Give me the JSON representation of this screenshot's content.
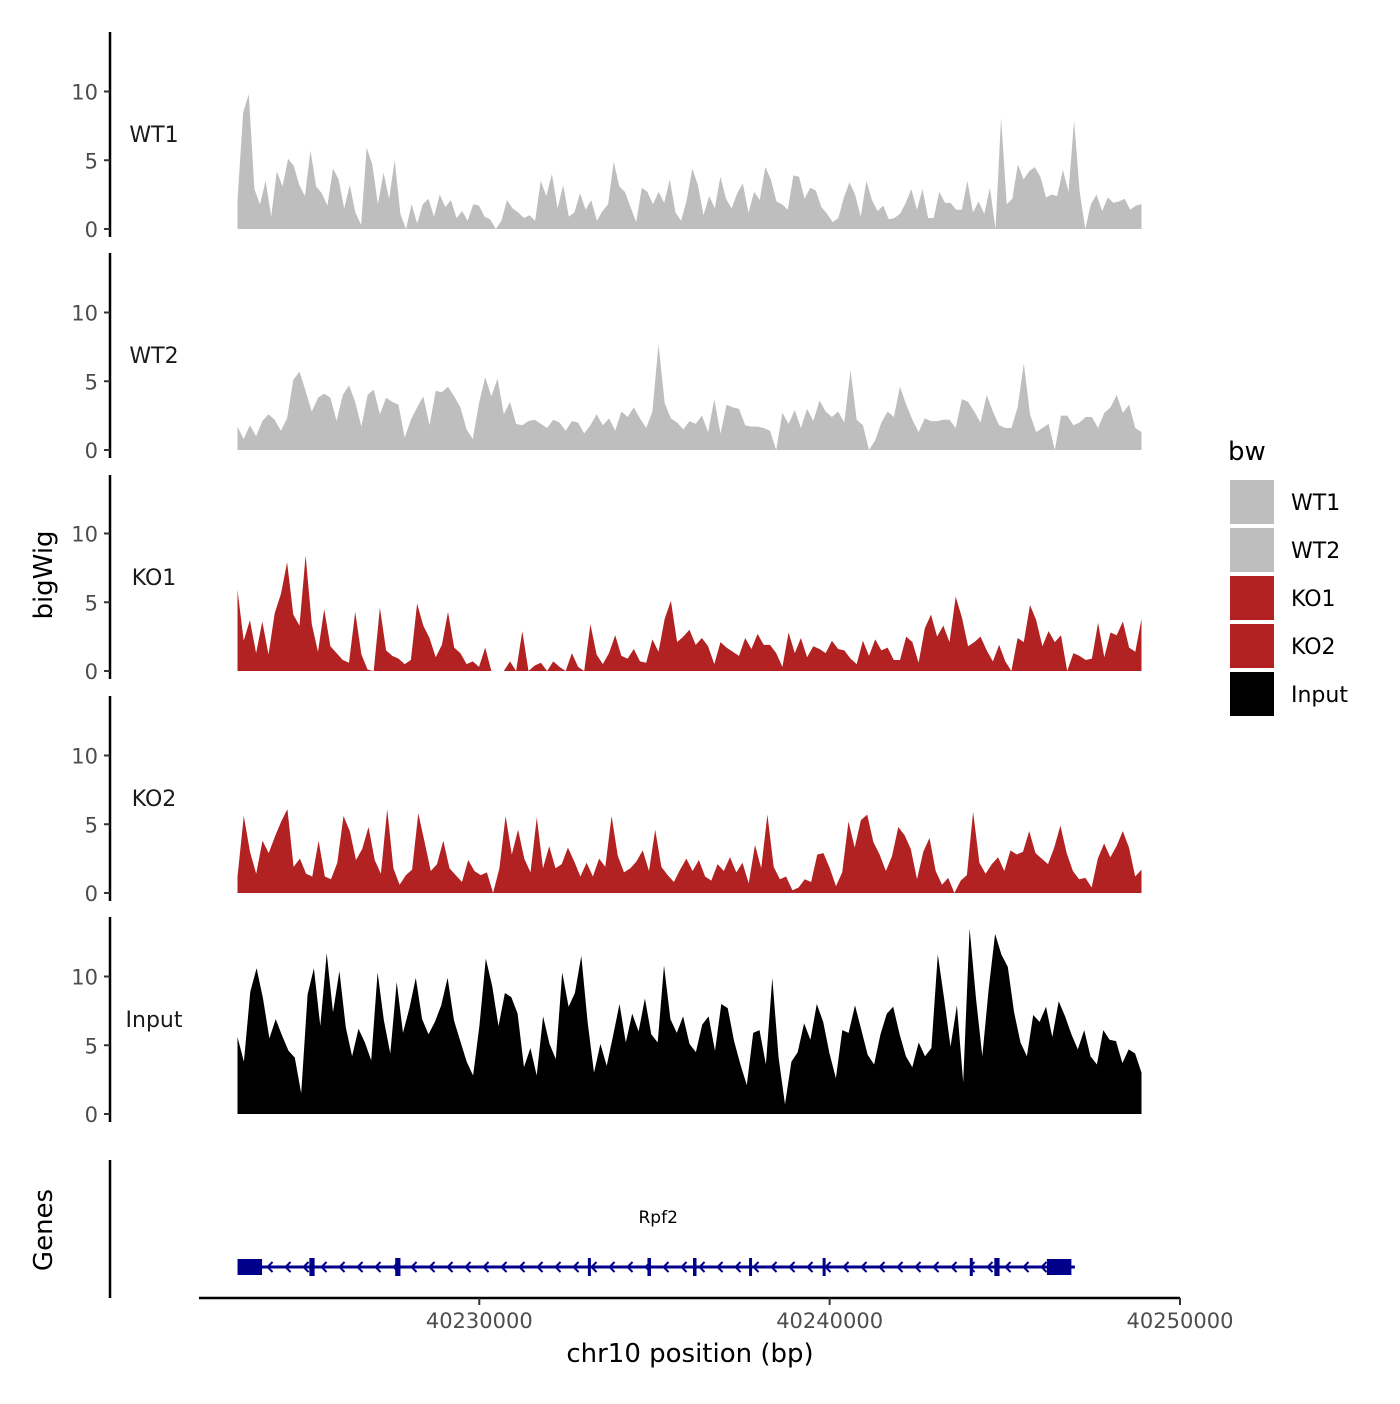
{
  "chart_data": {
    "type": "area",
    "title": "",
    "ylabel": "bigWig",
    "xlabel": "chr10 position (bp)",
    "genes_panel_label": "Genes",
    "xlim": [
      40222000,
      40250000
    ],
    "ylim": [
      0,
      14
    ],
    "data_x_range": [
      40223100,
      40248900
    ],
    "y_ticks": [
      0,
      5,
      10
    ],
    "y_tick_labels": [
      "0",
      "5",
      "10"
    ],
    "x_ticks": [
      40230000,
      40240000,
      40250000
    ],
    "x_tick_labels": [
      "40230000",
      "40240000",
      "40250000"
    ],
    "legend": {
      "title": "bw",
      "position": "right",
      "entries": [
        {
          "label": "WT1",
          "color": "#bebebe"
        },
        {
          "label": "WT2",
          "color": "#bebebe"
        },
        {
          "label": "KO1",
          "color": "#b22222"
        },
        {
          "label": "KO2",
          "color": "#b22222"
        },
        {
          "label": "Input",
          "color": "#000000"
        }
      ]
    },
    "series": [
      {
        "name": "WT1",
        "color": "#bebebe",
        "values": [
          2.1,
          8.5,
          9.8,
          2.9,
          1.8,
          3.5,
          0.9,
          4.2,
          3.1,
          5.1,
          4.6,
          3.2,
          2.4,
          5.7,
          3.1,
          2.6,
          1.7,
          4.4,
          3.6,
          1.5,
          3.2,
          1.2,
          0.3,
          5.9,
          4.7,
          1.8,
          4.1,
          2.2,
          5.0,
          1.1,
          0.0,
          1.8,
          0.4,
          1.8,
          2.2,
          0.9,
          2.5,
          1.6,
          2.1,
          0.8,
          1.3,
          0.6,
          1.8,
          1.7,
          0.9,
          0.7,
          0.0,
          0.6,
          2.1,
          1.5,
          1.2,
          0.8,
          1.0,
          0.6,
          3.5,
          2.4,
          4.0,
          1.5,
          3.2,
          0.9,
          1.2,
          2.6,
          1.4,
          2.1,
          0.6,
          1.3,
          1.8,
          4.9,
          3.1,
          2.7,
          1.6,
          0.5,
          3.0,
          2.7,
          1.8,
          2.7,
          1.9,
          3.6,
          1.2,
          0.6,
          2.1,
          4.4,
          3.2,
          1.0,
          2.4,
          1.5,
          3.8,
          2.2,
          1.5,
          2.6,
          3.3,
          1.2,
          2.7,
          2.1,
          4.5,
          3.6,
          2.0,
          1.8,
          1.4,
          3.9,
          3.8,
          2.2,
          3.0,
          2.8,
          1.6,
          1.1,
          0.5,
          0.8,
          2.3,
          3.4,
          2.5,
          0.9,
          3.5,
          2.1,
          1.3,
          1.7,
          0.7,
          0.8,
          1.1,
          1.9,
          2.9,
          1.4,
          2.9,
          0.8,
          0.8,
          2.7,
          1.9,
          1.9,
          1.4,
          1.4,
          3.5,
          1.2,
          2.0,
          1.1,
          3.0,
          0.0,
          8.1,
          1.8,
          2.2,
          4.7,
          3.6,
          4.2,
          4.5,
          3.8,
          2.3,
          2.5,
          2.4,
          4.3,
          2.7,
          7.9,
          2.7,
          0.0,
          1.8,
          2.5,
          1.3,
          2.3,
          1.9,
          2.0,
          2.2,
          1.4,
          1.7,
          1.8
        ]
      },
      {
        "name": "WT2",
        "color": "#bebebe",
        "values": [
          1.7,
          0.8,
          1.8,
          1.0,
          2.1,
          2.6,
          2.2,
          1.4,
          2.3,
          5.1,
          5.7,
          4.3,
          2.8,
          3.8,
          4.1,
          3.8,
          2.1,
          4.0,
          4.7,
          3.5,
          1.7,
          4.0,
          4.4,
          2.6,
          3.8,
          3.5,
          3.3,
          0.9,
          2.2,
          3.1,
          3.9,
          1.8,
          4.3,
          4.2,
          4.6,
          3.9,
          3.1,
          1.5,
          0.8,
          3.4,
          5.3,
          3.9,
          5.2,
          2.6,
          3.5,
          1.9,
          1.8,
          2.1,
          2.2,
          1.9,
          1.6,
          2.2,
          2.0,
          1.4,
          2.1,
          2.0,
          1.2,
          1.8,
          2.6,
          1.8,
          2.3,
          1.4,
          2.8,
          2.4,
          3.1,
          2.3,
          1.6,
          2.8,
          7.7,
          3.4,
          2.3,
          2.0,
          1.5,
          2.1,
          1.9,
          2.5,
          1.3,
          3.7,
          1.2,
          3.3,
          3.1,
          3.0,
          1.8,
          1.7,
          1.7,
          1.6,
          1.4,
          0.0,
          2.7,
          1.9,
          2.9,
          1.6,
          3.0,
          2.1,
          3.6,
          2.8,
          2.4,
          2.8,
          2.0,
          5.8,
          2.2,
          1.8,
          0.0,
          0.7,
          2.0,
          2.8,
          2.4,
          4.6,
          3.3,
          2.2,
          1.3,
          2.3,
          2.1,
          2.1,
          2.2,
          2.2,
          1.6,
          3.7,
          3.5,
          2.8,
          2.0,
          4.0,
          2.8,
          1.8,
          1.6,
          1.6,
          3.1,
          6.3,
          2.6,
          1.3,
          1.6,
          1.9,
          0.0,
          2.5,
          2.5,
          1.8,
          2.0,
          2.4,
          2.4,
          1.6,
          2.7,
          3.1,
          4.0,
          2.7,
          3.3,
          1.6,
          1.3
        ]
      },
      {
        "name": "KO1",
        "color": "#b22222",
        "values": [
          5.9,
          2.2,
          3.7,
          1.3,
          3.6,
          1.2,
          4.2,
          5.6,
          7.9,
          4.1,
          3.3,
          8.4,
          3.4,
          1.4,
          4.5,
          1.8,
          1.3,
          0.8,
          0.6,
          4.3,
          1.2,
          0.1,
          0.0,
          4.6,
          1.5,
          1.1,
          0.9,
          0.5,
          0.8,
          4.9,
          3.3,
          2.4,
          1.0,
          1.9,
          4.3,
          1.7,
          1.3,
          0.5,
          0.7,
          0.3,
          1.7,
          0.0,
          0.0,
          0.0,
          0.7,
          0.0,
          2.9,
          0.0,
          0.4,
          0.6,
          0.0,
          0.7,
          0.3,
          0.0,
          1.3,
          0.3,
          0.0,
          3.4,
          1.2,
          0.5,
          1.3,
          2.6,
          1.1,
          0.9,
          1.6,
          0.7,
          0.6,
          2.3,
          1.4,
          3.8,
          5.1,
          2.1,
          2.5,
          3.0,
          1.9,
          2.4,
          1.8,
          0.5,
          2.1,
          1.7,
          1.4,
          1.1,
          2.4,
          1.6,
          2.7,
          1.9,
          1.9,
          1.3,
          0.3,
          2.8,
          1.3,
          2.4,
          1.0,
          1.8,
          1.6,
          1.3,
          2.2,
          1.6,
          1.5,
          0.9,
          0.5,
          2.2,
          1.1,
          2.3,
          1.5,
          1.7,
          0.8,
          0.8,
          2.5,
          2.1,
          0.6,
          3.1,
          4.1,
          2.5,
          3.3,
          2.1,
          5.4,
          3.9,
          1.8,
          2.1,
          2.5,
          1.5,
          0.7,
          1.9,
          0.7,
          0.0,
          2.4,
          2.1,
          4.8,
          3.7,
          1.8,
          2.9,
          2.1,
          2.6,
          0.0,
          1.3,
          1.1,
          0.8,
          0.9,
          3.5,
          1.0,
          2.8,
          2.6,
          3.6,
          1.7,
          1.4,
          3.8
        ]
      },
      {
        "name": "KO2",
        "color": "#b22222",
        "values": [
          1.2,
          5.6,
          3.0,
          1.4,
          3.8,
          2.9,
          4.1,
          5.2,
          6.1,
          1.9,
          2.5,
          1.4,
          1.2,
          3.8,
          1.2,
          1.0,
          2.2,
          5.6,
          4.5,
          2.4,
          3.2,
          4.8,
          2.4,
          1.4,
          6.1,
          1.8,
          0.6,
          1.3,
          1.7,
          5.8,
          3.7,
          1.6,
          2.1,
          3.8,
          1.8,
          1.3,
          0.8,
          2.4,
          1.6,
          1.3,
          1.5,
          0.0,
          1.8,
          5.6,
          2.8,
          4.6,
          2.5,
          1.5,
          5.5,
          1.8,
          3.4,
          1.8,
          2.1,
          3.3,
          2.3,
          1.2,
          2.2,
          1.2,
          2.5,
          1.9,
          5.6,
          2.7,
          1.5,
          1.8,
          2.3,
          3.1,
          1.6,
          4.6,
          1.9,
          1.3,
          0.8,
          1.7,
          2.5,
          1.6,
          2.4,
          1.2,
          0.9,
          2.1,
          1.6,
          2.6,
          1.5,
          2.2,
          0.7,
          3.5,
          1.8,
          5.7,
          1.9,
          1.0,
          1.2,
          0.2,
          0.4,
          1.0,
          0.8,
          2.8,
          2.9,
          1.8,
          0.5,
          1.5,
          5.2,
          3.3,
          5.3,
          5.7,
          3.7,
          2.8,
          1.6,
          2.7,
          4.8,
          4.2,
          3.2,
          1.0,
          3.0,
          4.0,
          1.6,
          0.6,
          1.1,
          0.0,
          0.9,
          1.3,
          5.9,
          2.2,
          1.4,
          2.1,
          2.6,
          1.6,
          3.1,
          2.8,
          3.0,
          4.5,
          2.9,
          2.5,
          2.1,
          3.3,
          4.9,
          2.9,
          1.6,
          1.0,
          1.1,
          0.4,
          2.5,
          3.6,
          2.6,
          3.4,
          4.5,
          3.3,
          1.2,
          1.7
        ]
      },
      {
        "name": "Input",
        "color": "#000000",
        "values": [
          5.6,
          3.8,
          8.9,
          10.6,
          8.4,
          5.5,
          6.9,
          5.7,
          4.6,
          4.1,
          1.5,
          8.7,
          10.6,
          6.4,
          11.7,
          7.4,
          10.4,
          6.3,
          4.2,
          6.2,
          5.2,
          3.9,
          10.3,
          6.8,
          4.4,
          9.6,
          5.9,
          7.7,
          9.9,
          6.9,
          5.8,
          6.7,
          7.9,
          9.9,
          6.8,
          5.3,
          3.8,
          2.8,
          6.4,
          11.3,
          9.3,
          6.4,
          8.8,
          8.5,
          7.3,
          3.4,
          4.8,
          2.8,
          7.1,
          5.1,
          4.0,
          10.3,
          7.8,
          8.8,
          11.5,
          6.7,
          3.0,
          5.1,
          3.5,
          5.7,
          8.0,
          5.2,
          7.3,
          6.0,
          8.4,
          5.8,
          5.2,
          10.8,
          6.9,
          5.9,
          7.1,
          5.1,
          4.5,
          6.5,
          7.1,
          4.6,
          8.0,
          7.7,
          5.3,
          3.6,
          2.1,
          5.9,
          6.1,
          3.6,
          9.9,
          4.1,
          0.7,
          3.8,
          4.5,
          6.6,
          5.4,
          8.0,
          6.7,
          4.4,
          2.6,
          6.1,
          5.9,
          7.9,
          6.1,
          4.3,
          3.6,
          5.8,
          7.3,
          7.8,
          5.8,
          4.2,
          3.4,
          5.2,
          4.2,
          4.8,
          11.6,
          8.4,
          4.9,
          7.9,
          2.3,
          13.5,
          8.4,
          4.2,
          9.1,
          13.1,
          11.6,
          10.7,
          7.4,
          5.2,
          4.2,
          7.2,
          6.7,
          7.8,
          5.6,
          8.2,
          7.1,
          5.8,
          4.7,
          6.1,
          4.2,
          3.6,
          6.1,
          5.4,
          5.3,
          3.7,
          4.7,
          4.4,
          3.0
        ]
      }
    ],
    "genes": [
      {
        "name": "Rpf2",
        "start": 40223100,
        "end": 40247000,
        "strand": "-",
        "exons": [
          [
            40223100,
            40223800
          ],
          [
            40225150,
            40225300
          ],
          [
            40227600,
            40227750
          ],
          [
            40233100,
            40233180
          ],
          [
            40234800,
            40234900
          ],
          [
            40236100,
            40236200
          ],
          [
            40237700,
            40237780
          ],
          [
            40239800,
            40239880
          ],
          [
            40244000,
            40244060
          ],
          [
            40244700,
            40244850
          ],
          [
            40246200,
            40246900
          ]
        ]
      }
    ]
  }
}
